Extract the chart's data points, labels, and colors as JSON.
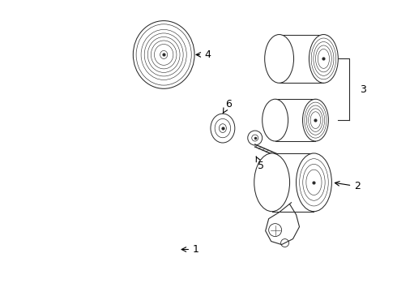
{
  "bg_color": "#ffffff",
  "line_color": "#2a2a2a",
  "label_color": "#000000",
  "fig_w": 4.9,
  "fig_h": 3.6,
  "dpi": 100,
  "n_belt_ribs": 9,
  "belt_lw": 0.65,
  "component_lw": 0.75
}
